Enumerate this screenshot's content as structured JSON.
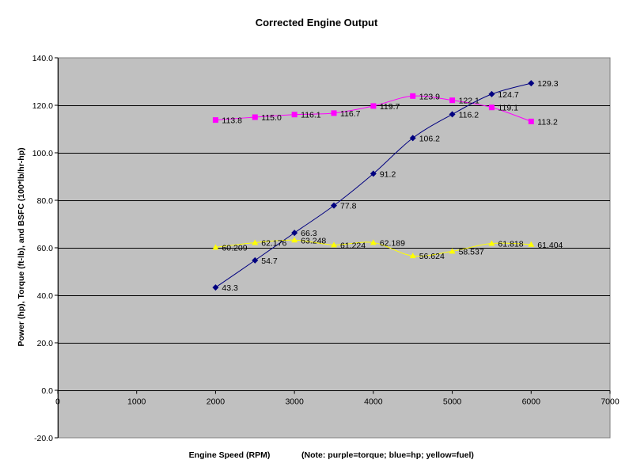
{
  "chart_data": {
    "type": "scatter",
    "title": "Corrected Engine Output",
    "xlabel": "Engine Speed (RPM)",
    "note": "(Note: purple=torque; blue=hp; yellow=fuel)",
    "ylabel": "Power (hp), Torque (ft-lb), and BSFC (100*lb/hr-hp)",
    "xlim": [
      0,
      7000
    ],
    "ylim": [
      -20,
      140
    ],
    "xticks": [
      0,
      1000,
      2000,
      3000,
      4000,
      5000,
      6000,
      7000
    ],
    "yticks": [
      -20,
      0,
      20,
      40,
      60,
      80,
      100,
      120,
      140
    ],
    "xtick_labels": [
      "0",
      "1000",
      "2000",
      "3000",
      "4000",
      "5000",
      "6000",
      "7000"
    ],
    "ytick_labels": [
      "-20.0",
      "0.0",
      "20.0",
      "40.0",
      "60.0",
      "80.0",
      "100.0",
      "120.0",
      "140.0"
    ],
    "grid": "horizontal",
    "plot_background": "#c0c0c0",
    "x": [
      2000,
      2500,
      3000,
      3500,
      4000,
      4500,
      5000,
      5500,
      6000
    ],
    "series": [
      {
        "key": "torque",
        "color": "#ff00ff",
        "marker": "square",
        "values": [
          113.8,
          115.0,
          116.1,
          116.7,
          119.7,
          123.9,
          122.1,
          119.1,
          113.2
        ],
        "labels": [
          "113.8",
          "115.0",
          "116.1",
          "116.7",
          "119.7",
          "123.9",
          "122.1",
          "119.1",
          "113.2"
        ]
      },
      {
        "key": "hp",
        "color": "#000080",
        "marker": "diamond",
        "values": [
          43.3,
          54.7,
          66.3,
          77.8,
          91.2,
          106.2,
          116.2,
          124.7,
          129.3
        ],
        "labels": [
          "43.3",
          "54.7",
          "66.3",
          "77.8",
          "91.2",
          "106.2",
          "116.2",
          "124.7",
          "129.3"
        ]
      },
      {
        "key": "fuel",
        "color": "#ffff00",
        "marker": "triangle",
        "values": [
          60.209,
          62.176,
          63.248,
          61.224,
          62.189,
          56.624,
          58.537,
          61.818,
          61.404
        ],
        "labels": [
          "60.209",
          "62.176",
          "63.248",
          "61.224",
          "62.189",
          "56.624",
          "58.537",
          "61.818",
          "61.404"
        ]
      }
    ]
  }
}
